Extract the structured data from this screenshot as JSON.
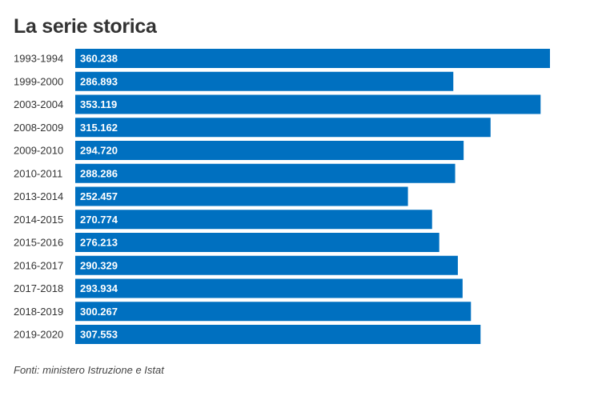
{
  "chart_data": {
    "type": "bar",
    "orientation": "horizontal",
    "title": "La serie storica",
    "categories": [
      "1993-1994",
      "1999-2000",
      "2003-2004",
      "2008-2009",
      "2009-2010",
      "2010-2011",
      "2013-2014",
      "2014-2015",
      "2015-2016",
      "2016-2017",
      "2017-2018",
      "2018-2019",
      "2019-2020"
    ],
    "values": [
      360238,
      286893,
      353119,
      315162,
      294720,
      288286,
      252457,
      270774,
      276213,
      290329,
      293934,
      300267,
      307553
    ],
    "value_labels": [
      "360.238",
      "286.893",
      "353.119",
      "315.162",
      "294.720",
      "288.286",
      "252.457",
      "270.774",
      "276.213",
      "290.329",
      "293.934",
      "300.267",
      "307.553"
    ],
    "xlabel": "",
    "ylabel": "",
    "xlim": [
      0,
      360238
    ],
    "grid": false,
    "bar_color": "#0070c0",
    "source": "Fonti: ministero Istruzione e Istat"
  }
}
